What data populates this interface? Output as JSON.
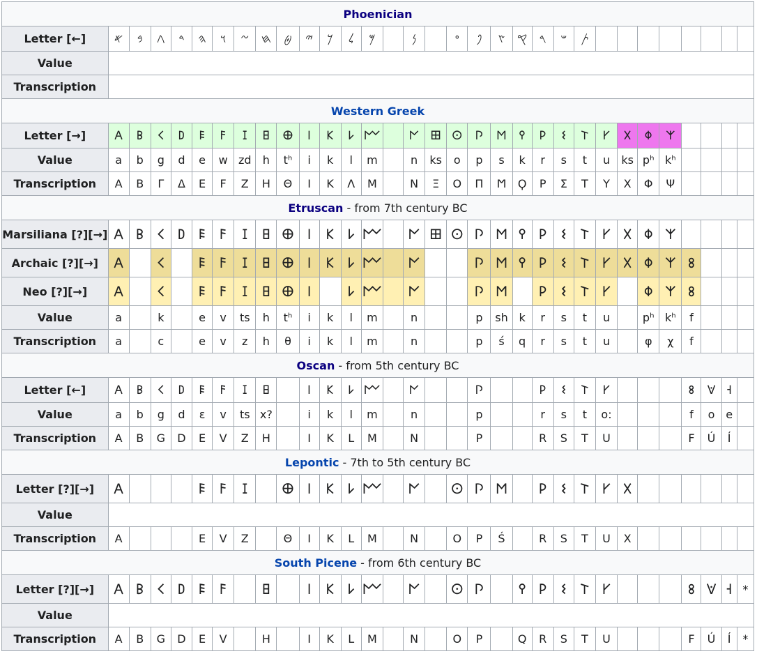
{
  "colors": {
    "border": "#a2a9b1",
    "header_bg": "#eaecf0",
    "section_bg": "#f8f9fa",
    "link_dark": "#0b0080",
    "link_blue": "#0645ad",
    "green_cell": "#ddffdd",
    "magenta_cell": "#ee77ee",
    "tan_cell": "#eedd99",
    "yellow_cell": "#fff0b3"
  },
  "sections": [
    {
      "id": "phoenician",
      "title": "Phoenician",
      "suffix": "",
      "link_color": "#0b0080",
      "rows": [
        {
          "label": "Letter [←]",
          "kind": "glyph",
          "size": "normal",
          "cells": [
            "𐤀",
            "𐤁",
            "𐤂",
            "𐤃",
            "𐤄",
            "𐤅",
            "𐤆",
            "𐤇",
            "𐤈",
            "𐤉",
            "𐤊",
            "𐤋",
            "𐤌",
            "",
            "𐤍",
            "",
            "𐤏",
            "𐤐",
            "𐤑",
            "𐤒",
            "𐤓",
            "𐤔",
            "𐤕",
            "",
            "",
            "",
            "",
            "",
            "",
            ""
          ]
        },
        {
          "label": "Value",
          "kind": "span",
          "cells": []
        },
        {
          "label": "Transcription",
          "kind": "span",
          "cells": []
        }
      ]
    },
    {
      "id": "western-greek",
      "title": "Western Greek",
      "suffix": "",
      "link_color": "#0645ad",
      "rows": [
        {
          "label": "Letter [→]",
          "kind": "glyph",
          "size": "normal",
          "cells": [
            "𐌀",
            "𐌁",
            "𐌂",
            "𐌃",
            "𐌄",
            "𐌅",
            "𐌆",
            "𐌇",
            "𐌈",
            "𐌉",
            "𐌊",
            "𐌋",
            "𐌌",
            "",
            "𐌍",
            "𐌎",
            "𐌏",
            "𐌐",
            "𐌑",
            "𐌒",
            "𐌓",
            "𐌔",
            "𐌕",
            "𐌖",
            "𐌗",
            "𐌘",
            "𐌙",
            "",
            "",
            ""
          ],
          "hl": [
            "g",
            "g",
            "g",
            "g",
            "g",
            "g",
            "g",
            "g",
            "g",
            "g",
            "g",
            "g",
            "g",
            "g",
            "g",
            "g",
            "g",
            "g",
            "g",
            "g",
            "g",
            "g",
            "g",
            "g",
            "p",
            "p",
            "p",
            "",
            "",
            ""
          ]
        },
        {
          "label": "Value",
          "kind": "text",
          "cells": [
            "a",
            "b",
            "g",
            "d",
            "e",
            "w",
            "zd",
            "h",
            "tʰ",
            "i",
            "k",
            "l",
            "m",
            "",
            "n",
            "ks",
            "o",
            "p",
            "s",
            "k",
            "r",
            "s",
            "t",
            "u",
            "ks",
            "pʰ",
            "kʰ",
            "",
            "",
            ""
          ]
        },
        {
          "label": "Transcription",
          "kind": "text",
          "cells": [
            "Α",
            "Β",
            "Γ",
            "Δ",
            "Ε",
            "Ϝ",
            "Ζ",
            "Η",
            "Θ",
            "Ι",
            "Κ",
            "Λ",
            "Μ",
            "",
            "Ν",
            "Ξ",
            "Ο",
            "Π",
            "Ϻ",
            "Ϙ",
            "Ρ",
            "Σ",
            "Τ",
            "Υ",
            "Χ",
            "Φ",
            "Ψ",
            "",
            "",
            ""
          ]
        }
      ]
    },
    {
      "id": "etruscan",
      "title": "Etruscan",
      "suffix": " - from 7th century BC",
      "link_color": "#0b0080",
      "rows": [
        {
          "label": "Marsiliana [?][→]",
          "kind": "glyph",
          "size": "big",
          "cells": [
            "𐌀",
            "𐌁",
            "𐌂",
            "𐌃",
            "𐌄",
            "𐌅",
            "𐌆",
            "𐌇",
            "𐌈",
            "𐌉",
            "𐌊",
            "𐌋",
            "𐌌",
            "",
            "𐌍",
            "𐌎",
            "𐌏",
            "𐌐",
            "𐌑",
            "𐌒",
            "𐌓",
            "𐌔",
            "𐌕",
            "𐌖",
            "𐌗",
            "𐌘",
            "𐌙",
            "",
            "",
            ""
          ]
        },
        {
          "label": "Archaic [?][→]",
          "kind": "glyph",
          "size": "big",
          "cells": [
            "𐌀",
            "",
            "𐌂",
            "",
            "𐌄",
            "𐌅",
            "𐌆",
            "𐌇",
            "𐌈",
            "𐌉",
            "𐌊",
            "𐌋",
            "𐌌",
            "",
            "𐌍",
            "",
            "",
            "𐌐",
            "𐌑",
            "𐌒",
            "𐌓",
            "𐌔",
            "𐌕",
            "𐌖",
            "𐌗",
            "𐌘",
            "𐌙",
            "𐌚",
            "",
            ""
          ],
          "hl": [
            "t",
            "",
            "t",
            "",
            "t",
            "t",
            "t",
            "t",
            "t",
            "t",
            "t",
            "t",
            "t",
            "t",
            "t",
            "",
            "",
            "t",
            "t",
            "t",
            "t",
            "t",
            "t",
            "t",
            "t",
            "t",
            "t",
            "t",
            "",
            ""
          ]
        },
        {
          "label": "Neo [?][→]",
          "kind": "glyph",
          "size": "big",
          "cells": [
            "𐌀",
            "",
            "𐌂",
            "",
            "𐌄",
            "𐌅",
            "𐌆",
            "𐌇",
            "𐌈",
            "𐌉",
            "",
            "𐌋",
            "𐌌",
            "",
            "𐌍",
            "",
            "",
            "𐌐",
            "𐌑",
            "",
            "𐌓",
            "𐌔",
            "𐌕",
            "𐌖",
            "",
            "𐌘",
            "𐌙",
            "𐌚",
            "",
            ""
          ],
          "hl": [
            "y",
            "",
            "y",
            "",
            "y",
            "y",
            "y",
            "y",
            "y",
            "y",
            "",
            "y",
            "y",
            "y",
            "y",
            "",
            "",
            "y",
            "y",
            "",
            "y",
            "y",
            "y",
            "y",
            "",
            "y",
            "y",
            "y",
            "",
            ""
          ]
        },
        {
          "label": "Value",
          "kind": "text",
          "cells": [
            "a",
            "",
            "k",
            "",
            "e",
            "v",
            "ts",
            "h",
            "tʰ",
            "i",
            "k",
            "l",
            "m",
            "",
            "n",
            "",
            "",
            "p",
            "sh",
            "k",
            "r",
            "s",
            "t",
            "u",
            "",
            "pʰ",
            "kʰ",
            "f",
            "",
            ""
          ]
        },
        {
          "label": "Transcription",
          "kind": "text",
          "cells": [
            "a",
            "",
            "c",
            "",
            "e",
            "v",
            "z",
            "h",
            "θ",
            "i",
            "k",
            "l",
            "m",
            "",
            "n",
            "",
            "",
            "p",
            "ś",
            "q",
            "r",
            "s",
            "t",
            "u",
            "",
            "φ",
            "χ",
            "f",
            "",
            ""
          ]
        }
      ]
    },
    {
      "id": "oscan",
      "title": "Oscan",
      "suffix": " - from 5th century BC",
      "link_color": "#0b0080",
      "rows": [
        {
          "label": "Letter [←]",
          "kind": "glyph",
          "size": "normal",
          "cells": [
            "𐌀",
            "𐌁",
            "𐌂",
            "𐌃",
            "𐌄",
            "𐌅",
            "𐌆",
            "𐌇",
            "",
            "𐌉",
            "𐌊",
            "𐌋",
            "𐌌",
            "",
            "𐌍",
            "",
            "",
            "𐌐",
            "",
            "",
            "𐌓",
            "𐌔",
            "𐌕",
            "𐌖",
            "",
            "",
            "",
            "𐌚",
            "𐌞",
            "𐌝"
          ]
        },
        {
          "label": "Value",
          "kind": "text",
          "cells": [
            "a",
            "b",
            "g",
            "d",
            "ɛ",
            "v",
            "ts",
            "x?",
            "",
            "i",
            "k",
            "l",
            "m",
            "",
            "n",
            "",
            "",
            "p",
            "",
            "",
            "r",
            "s",
            "t",
            "o:",
            "",
            "",
            "",
            "f",
            "o",
            "e"
          ]
        },
        {
          "label": "Transcription",
          "kind": "text",
          "cells": [
            "A",
            "B",
            "G",
            "D",
            "E",
            "V",
            "Z",
            "H",
            "",
            "I",
            "K",
            "L",
            "M",
            "",
            "N",
            "",
            "",
            "P",
            "",
            "",
            "R",
            "S",
            "T",
            "U",
            "",
            "",
            "",
            "F",
            "Ú",
            "Í"
          ]
        }
      ]
    },
    {
      "id": "lepontic",
      "title": "Lepontic",
      "suffix": " - 7th to 5th century BC",
      "link_color": "#0645ad",
      "rows": [
        {
          "label": "Letter [?][→]",
          "kind": "glyph",
          "size": "big",
          "cells": [
            "𐌀",
            "",
            "",
            "",
            "𐌄",
            "𐌅",
            "𐌆",
            "",
            "𐌈",
            "𐌉",
            "𐌊",
            "𐌋",
            "𐌌",
            "",
            "𐌍",
            "",
            "𐌏",
            "𐌐",
            "𐌑",
            "",
            "𐌓",
            "𐌔",
            "𐌕",
            "𐌖",
            "𐌗",
            "",
            "",
            "",
            "",
            ""
          ]
        },
        {
          "label": "Value",
          "kind": "span",
          "cells": []
        },
        {
          "label": "Transcription",
          "kind": "text",
          "cells": [
            "A",
            "",
            "",
            "",
            "E",
            "V",
            "Z",
            "",
            "Θ",
            "I",
            "K",
            "L",
            "M",
            "",
            "N",
            "",
            "O",
            "P",
            "Ś",
            "",
            "R",
            "S",
            "T",
            "U",
            "X",
            "",
            "",
            "",
            "",
            ""
          ]
        }
      ]
    },
    {
      "id": "south-picene",
      "title": "South Picene",
      "suffix": " - from 6th century BC",
      "link_color": "#0645ad",
      "rows": [
        {
          "label": "Letter [?][→]",
          "kind": "glyph",
          "size": "big",
          "cells": [
            "𐌀",
            "𐌁",
            "𐌂",
            "𐌃",
            "𐌄",
            "𐌅",
            "",
            "𐌇",
            "",
            "𐌉",
            "𐌊",
            "𐌋",
            "𐌌",
            "",
            "𐌍",
            "",
            "𐌏",
            "𐌐",
            "",
            "𐌒",
            "𐌓",
            "𐌔",
            "𐌕",
            "𐌖",
            "",
            "",
            "",
            "𐌚",
            "𐌞",
            "𐌝"
          ],
          "last": "*"
        },
        {
          "label": "Value",
          "kind": "span",
          "cells": []
        },
        {
          "label": "Transcription",
          "kind": "text",
          "cells": [
            "A",
            "B",
            "G",
            "D",
            "E",
            "V",
            "",
            "H",
            "",
            "I",
            "K",
            "L",
            "M",
            "",
            "N",
            "",
            "O",
            "P",
            "",
            "Q",
            "R",
            "S",
            "T",
            "U",
            "",
            "",
            "",
            "F",
            "Ú",
            "Í"
          ],
          "last": "*"
        }
      ]
    }
  ]
}
